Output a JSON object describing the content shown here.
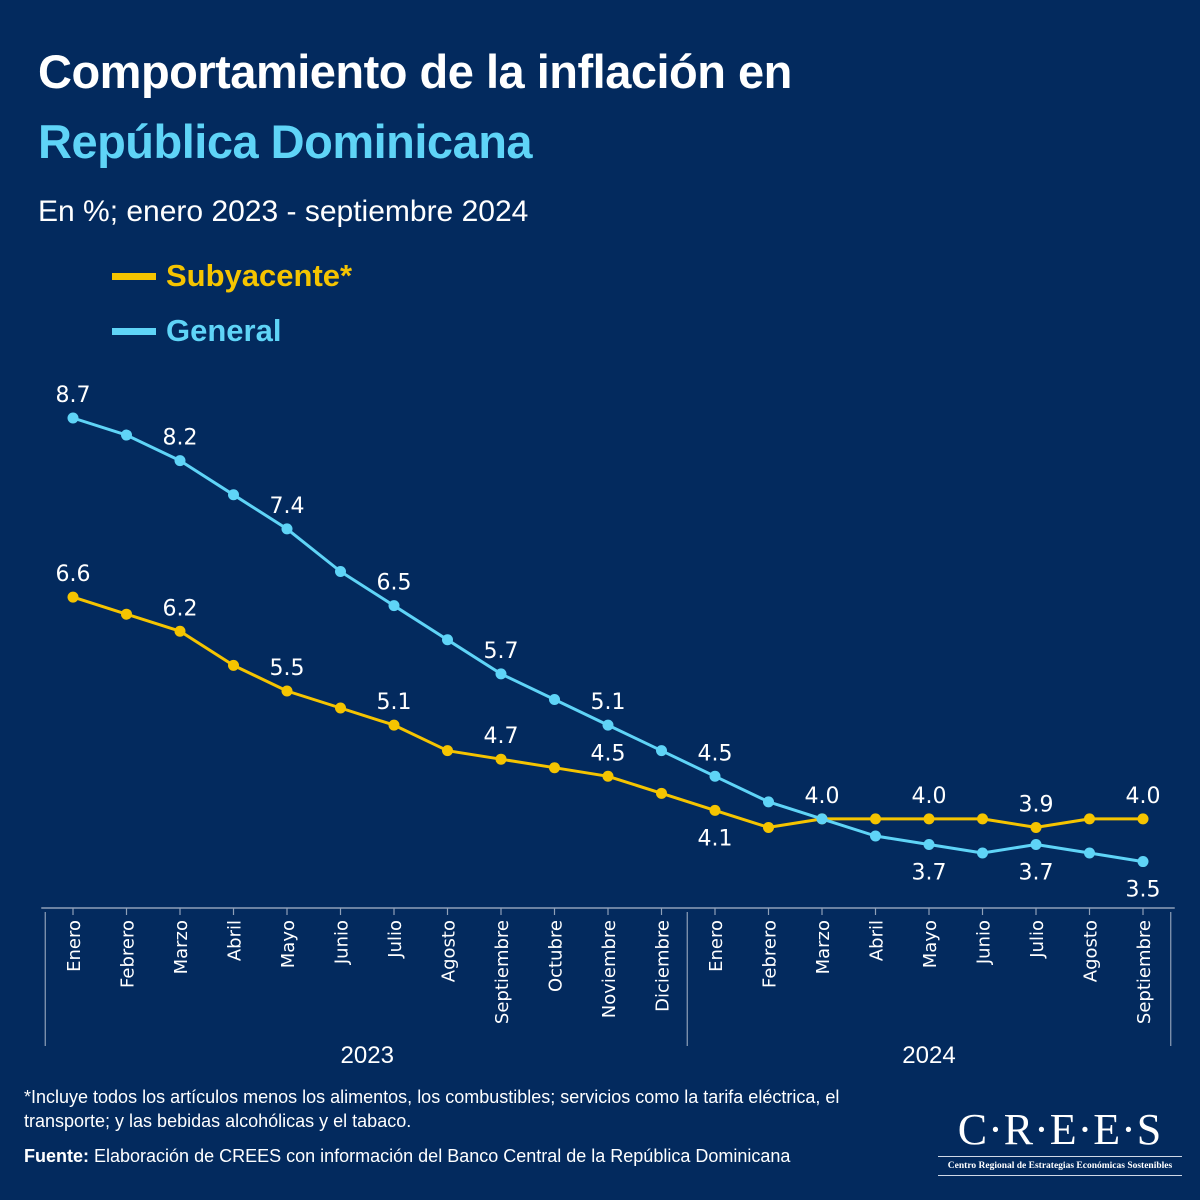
{
  "header": {
    "title_line1": "Comportamiento de la inflación en",
    "title_line2": "República Dominicana",
    "subtitle": "En %; enero 2023 - septiembre 2024"
  },
  "legend": [
    {
      "label": "Subyacente*",
      "color": "#f5c400"
    },
    {
      "label": "General",
      "color": "#5fd4f7"
    }
  ],
  "chart_data": {
    "type": "line",
    "title": "Comportamiento de la inflación en República Dominicana",
    "subtitle": "En %; enero 2023 - septiembre 2024",
    "xlabel": "",
    "ylabel": "%",
    "ylim": [
      3.0,
      9.0
    ],
    "grid": false,
    "legend_position": "top-left",
    "categories": [
      "Enero",
      "Febrero",
      "Marzo",
      "Abril",
      "Mayo",
      "Junio",
      "Julio",
      "Agosto",
      "Septiembre",
      "Octubre",
      "Noviembre",
      "Diciembre",
      "Enero",
      "Febrero",
      "Marzo",
      "Abril",
      "Mayo",
      "Junio",
      "Julio",
      "Agosto",
      "Septiembre"
    ],
    "year_groups": [
      {
        "label": "2023",
        "start": 0,
        "end": 11
      },
      {
        "label": "2024",
        "start": 12,
        "end": 20
      }
    ],
    "series": [
      {
        "name": "General",
        "color": "#5fd4f7",
        "values": [
          8.7,
          8.5,
          8.2,
          7.8,
          7.4,
          6.9,
          6.5,
          6.1,
          5.7,
          5.4,
          5.1,
          4.8,
          4.5,
          4.2,
          4.0,
          3.8,
          3.7,
          3.6,
          3.7,
          3.6,
          3.5
        ],
        "labeled_indices": [
          0,
          2,
          4,
          6,
          8,
          10,
          12,
          16,
          18,
          20
        ],
        "label_side": [
          "above",
          "above",
          "above",
          "above",
          "above",
          "above",
          "above",
          "below",
          "below",
          "below"
        ]
      },
      {
        "name": "Subyacente*",
        "color": "#f5c400",
        "values": [
          6.6,
          6.4,
          6.2,
          5.8,
          5.5,
          5.3,
          5.1,
          4.8,
          4.7,
          4.6,
          4.5,
          4.3,
          4.1,
          3.9,
          4.0,
          4.0,
          4.0,
          4.0,
          3.9,
          4.0,
          4.0
        ],
        "labeled_indices": [
          0,
          2,
          4,
          6,
          8,
          10,
          12,
          14,
          16,
          18,
          20
        ],
        "label_side": [
          "above",
          "above",
          "above",
          "above",
          "above",
          "above",
          "below",
          "above",
          "above",
          "above",
          "above"
        ]
      }
    ]
  },
  "footer": {
    "footnote": "*Incluye todos los artículos menos los alimentos, los combustibles; servicios como la tarifa eléctrica, el transporte; y las bebidas alcohólicas y el tabaco.",
    "source_label": "Fuente:",
    "source_text": " Elaboración de CREES con información del Banco Central de la República Dominicana"
  },
  "logo": {
    "main": "C·R·E·E·S",
    "sub": "Centro Regional de Estrategias Económicas Sostenibles"
  }
}
